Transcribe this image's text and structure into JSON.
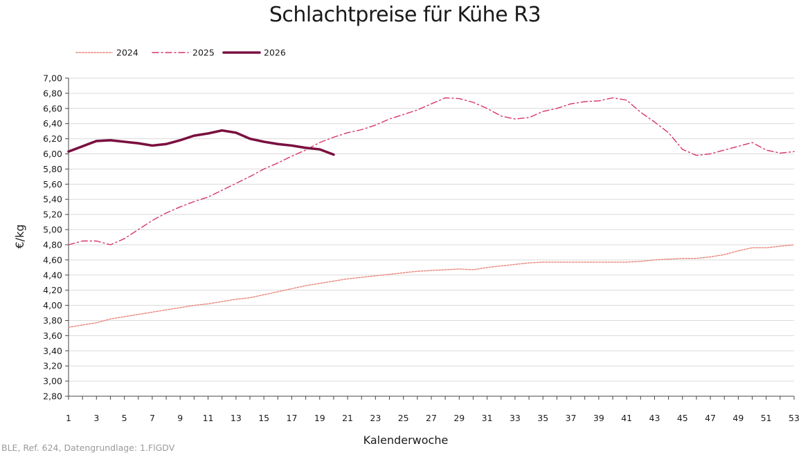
{
  "chart_data": {
    "type": "line",
    "title": "Schlachtpreise für Kühe R3",
    "xlabel": "Kalenderwoche",
    "ylabel": "€/kg",
    "xlim": [
      1,
      53
    ],
    "ylim": [
      2.8,
      7.0
    ],
    "y_step": 0.2,
    "x_tick_labels": [
      "1",
      "3",
      "5",
      "7",
      "9",
      "11",
      "13",
      "15",
      "17",
      "19",
      "21",
      "23",
      "25",
      "27",
      "29",
      "31",
      "33",
      "35",
      "37",
      "39",
      "41",
      "43",
      "45",
      "47",
      "49",
      "51",
      "53"
    ],
    "grid": "horizontal",
    "legend_position": "top-left",
    "series": [
      {
        "name": "2024",
        "color": "#e8857a",
        "style": "dotted",
        "x": [
          1,
          2,
          3,
          4,
          5,
          6,
          7,
          8,
          9,
          10,
          11,
          12,
          13,
          14,
          15,
          16,
          17,
          18,
          19,
          20,
          21,
          22,
          23,
          24,
          25,
          26,
          27,
          28,
          29,
          30,
          31,
          32,
          33,
          34,
          35,
          36,
          37,
          38,
          39,
          40,
          41,
          42,
          43,
          44,
          45,
          46,
          47,
          48,
          49,
          50,
          51,
          52,
          53
        ],
        "values": [
          3.71,
          3.74,
          3.77,
          3.82,
          3.85,
          3.88,
          3.91,
          3.94,
          3.97,
          4.0,
          4.02,
          4.05,
          4.08,
          4.1,
          4.14,
          4.18,
          4.22,
          4.26,
          4.29,
          4.32,
          4.35,
          4.37,
          4.39,
          4.41,
          4.43,
          4.45,
          4.46,
          4.47,
          4.48,
          4.47,
          4.5,
          4.52,
          4.54,
          4.56,
          4.57,
          4.57,
          4.57,
          4.57,
          4.57,
          4.57,
          4.57,
          4.58,
          4.6,
          4.61,
          4.62,
          4.62,
          4.64,
          4.67,
          4.72,
          4.76,
          4.76,
          4.78,
          4.8
        ]
      },
      {
        "name": "2025",
        "color": "#d6336c",
        "style": "dashdot",
        "x": [
          1,
          2,
          3,
          4,
          5,
          6,
          7,
          8,
          9,
          10,
          11,
          12,
          13,
          14,
          15,
          16,
          17,
          18,
          19,
          20,
          21,
          22,
          23,
          24,
          25,
          26,
          27,
          28,
          29,
          30,
          31,
          32,
          33,
          34,
          35,
          36,
          37,
          38,
          39,
          40,
          41,
          42,
          43,
          44,
          45,
          46,
          47,
          48,
          49,
          50,
          51,
          52,
          53
        ],
        "values": [
          4.8,
          4.85,
          4.85,
          4.8,
          4.88,
          5.0,
          5.12,
          5.22,
          5.3,
          5.37,
          5.43,
          5.52,
          5.61,
          5.7,
          5.8,
          5.88,
          5.97,
          6.05,
          6.15,
          6.22,
          6.28,
          6.32,
          6.38,
          6.46,
          6.52,
          6.58,
          6.66,
          6.74,
          6.73,
          6.68,
          6.6,
          6.5,
          6.46,
          6.48,
          6.56,
          6.6,
          6.66,
          6.69,
          6.7,
          6.74,
          6.71,
          6.55,
          6.42,
          6.28,
          6.06,
          5.98,
          6.0,
          6.05,
          6.1,
          6.15,
          6.05,
          6.01,
          6.03
        ]
      },
      {
        "name": "2026",
        "color": "#7a1040",
        "style": "solid",
        "x": [
          1,
          2,
          3,
          4,
          5,
          6,
          7,
          8,
          9,
          10,
          11,
          12,
          13,
          14,
          15,
          16,
          17,
          18,
          19,
          20
        ],
        "values": [
          6.03,
          6.1,
          6.17,
          6.18,
          6.16,
          6.14,
          6.11,
          6.13,
          6.18,
          6.24,
          6.27,
          6.31,
          6.28,
          6.2,
          6.16,
          6.13,
          6.11,
          6.08,
          6.06,
          5.99
        ]
      }
    ],
    "y_tick_labels": [
      "2,80",
      "3,00",
      "3,20",
      "3,40",
      "3,60",
      "3,80",
      "4,00",
      "4,20",
      "4,40",
      "4,60",
      "4,80",
      "5,00",
      "5,20",
      "5,40",
      "5,60",
      "5,80",
      "6,00",
      "6,20",
      "6,40",
      "6,60",
      "6,80",
      "7,00"
    ]
  },
  "source_note": "BLE, Ref. 624, Datengrundlage: 1.FlGDV"
}
